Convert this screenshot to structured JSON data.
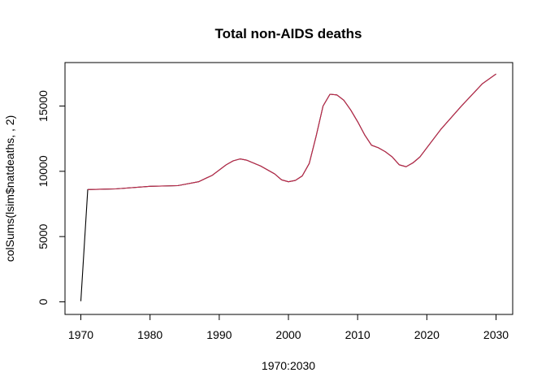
{
  "chart_data": {
    "type": "line",
    "title": "Total non-AIDS deaths",
    "xlabel": "1970:2030",
    "ylabel": "colSums(lsim$natdeaths, , 2)",
    "xlim": [
      1970,
      2030
    ],
    "ylim": [
      0,
      17500
    ],
    "x_ticks": [
      1970,
      1980,
      1990,
      2000,
      2010,
      2020,
      2030
    ],
    "y_ticks": [
      0,
      5000,
      10000,
      15000
    ],
    "x_tick_labels": [
      "1970",
      "1980",
      "1990",
      "2000",
      "2010",
      "2020",
      "2030"
    ],
    "y_tick_labels": [
      "0",
      "5000",
      "10000",
      "15000"
    ],
    "grid": false,
    "series": [
      {
        "color": "#000000",
        "x": [
          1970,
          1971,
          1975,
          1980,
          1984,
          1987,
          1989,
          1991,
          1992,
          1993,
          1994,
          1996,
          1998,
          1999,
          2000,
          2001,
          2002,
          2003,
          2004,
          2005,
          2006,
          2007,
          2008,
          2009,
          2010,
          2011,
          2012,
          2013,
          2014,
          2015,
          2016,
          2017,
          2018,
          2019,
          2020,
          2022,
          2025,
          2028,
          2030
        ],
        "values": [
          50,
          8600,
          8650,
          8850,
          8900,
          9200,
          9700,
          10500,
          10800,
          10950,
          10850,
          10400,
          9800,
          9350,
          9200,
          9300,
          9650,
          10600,
          12700,
          15000,
          15900,
          15850,
          15450,
          14700,
          13800,
          12800,
          12000,
          11800,
          11500,
          11100,
          10500,
          10350,
          10650,
          11100,
          11800,
          13200,
          15000,
          16700,
          17450
        ]
      },
      {
        "color": "#c0284a",
        "x": [
          1971,
          1975,
          1980,
          1984,
          1987,
          1989,
          1991,
          1992,
          1993,
          1994,
          1996,
          1998,
          1999,
          2000,
          2001,
          2002,
          2003,
          2004,
          2005,
          2006,
          2007,
          2008,
          2009,
          2010,
          2011,
          2012,
          2013,
          2014,
          2015,
          2016,
          2017,
          2018,
          2019,
          2020,
          2022,
          2025,
          2028,
          2030
        ],
        "values": [
          8600,
          8650,
          8850,
          8900,
          9200,
          9700,
          10500,
          10800,
          10950,
          10850,
          10400,
          9800,
          9350,
          9200,
          9300,
          9650,
          10600,
          12700,
          15000,
          15900,
          15850,
          15450,
          14700,
          13800,
          12800,
          12000,
          11800,
          11500,
          11100,
          10500,
          10350,
          10650,
          11100,
          11800,
          13200,
          15000,
          16700,
          17450
        ]
      }
    ]
  }
}
